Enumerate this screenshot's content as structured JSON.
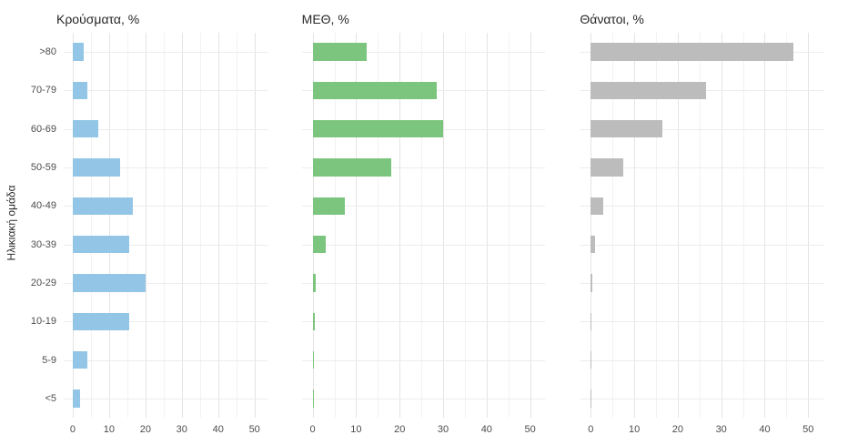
{
  "figure": {
    "y_axis_title": "Ηλικιακή ομάδα"
  },
  "axis": {
    "x_major_ticks": [
      0,
      10,
      20,
      30,
      40,
      50
    ],
    "x_minor_ticks": [
      5,
      15,
      25,
      35,
      45
    ],
    "x_range": [
      0,
      50
    ]
  },
  "colors": {
    "cases": "#93c6e6",
    "icu": "#7cc57e",
    "deaths": "#bcbcbc",
    "grid_major": "#e4e4e4",
    "grid_minor": "#f2f2f2",
    "tick_text": "#4d4d4d",
    "title_text": "#262626"
  },
  "chart_data": [
    {
      "type": "bar",
      "orientation": "horizontal",
      "title": "Κρούσματα, %",
      "color_key": "cases",
      "xlim": [
        0,
        50
      ],
      "categories": [
        ">80",
        "70-79",
        "60-69",
        "50-59",
        "40-49",
        "30-39",
        "20-29",
        "10-19",
        "5-9",
        "<5"
      ],
      "values": [
        3,
        4,
        7,
        13,
        16.5,
        15.5,
        20,
        15.5,
        4,
        2
      ]
    },
    {
      "type": "bar",
      "orientation": "horizontal",
      "title": "ΜΕΘ, %",
      "color_key": "icu",
      "xlim": [
        0,
        50
      ],
      "categories": [
        ">80",
        "70-79",
        "60-69",
        "50-59",
        "40-49",
        "30-39",
        "20-29",
        "10-19",
        "5-9",
        "<5"
      ],
      "values": [
        12.5,
        28.5,
        30,
        18,
        7.5,
        3,
        0.8,
        0.4,
        0.1,
        0.2
      ]
    },
    {
      "type": "bar",
      "orientation": "horizontal",
      "title": "Θάνατοι, %",
      "color_key": "deaths",
      "xlim": [
        0,
        50
      ],
      "categories": [
        ">80",
        "70-79",
        "60-69",
        "50-59",
        "40-49",
        "30-39",
        "20-29",
        "10-19",
        "5-9",
        "<5"
      ],
      "values": [
        46.5,
        26.5,
        16.5,
        7.5,
        2.8,
        1,
        0.3,
        0.2,
        0.1,
        0.1
      ]
    }
  ]
}
